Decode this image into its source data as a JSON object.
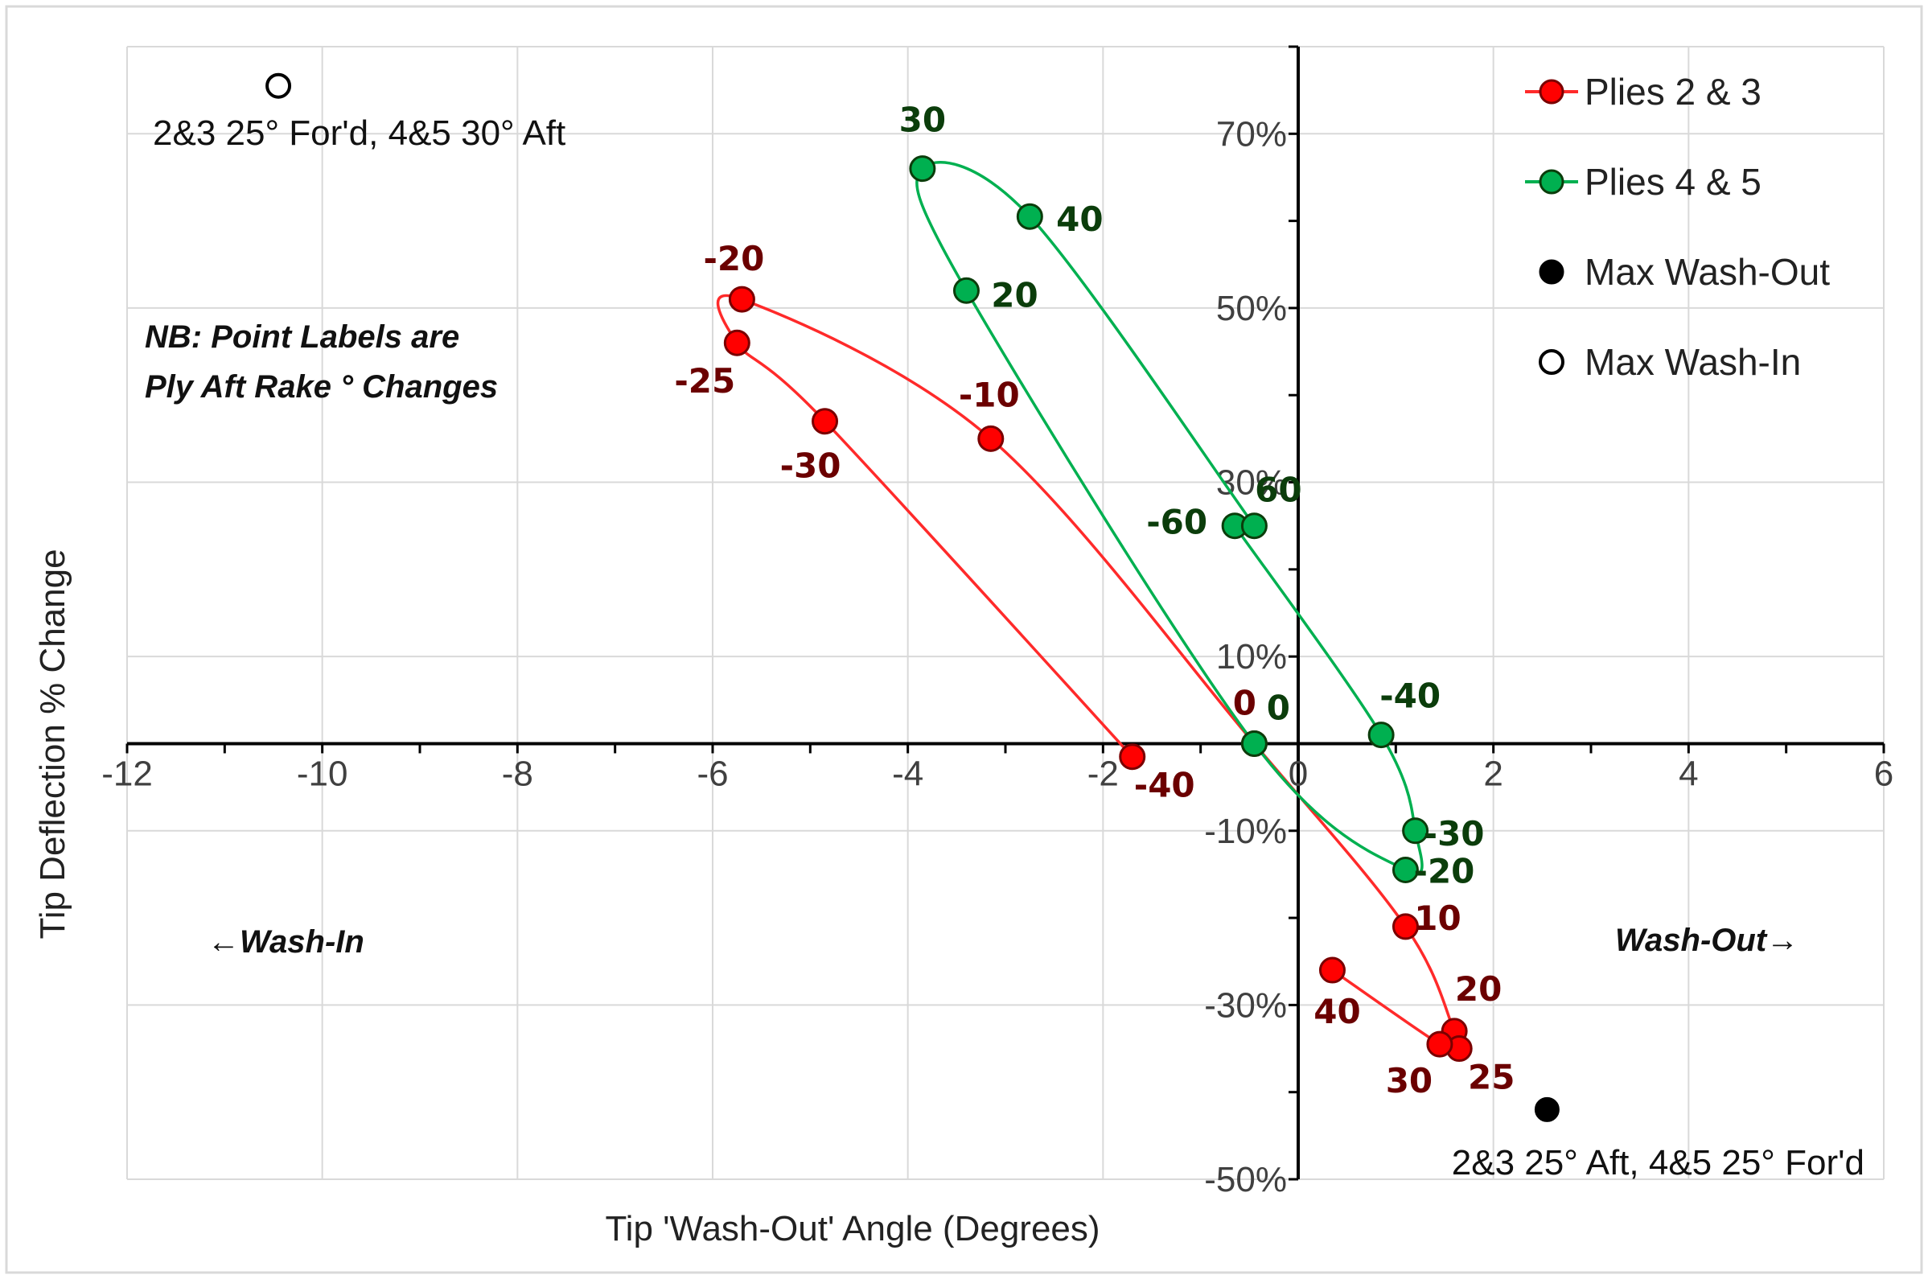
{
  "chart_data": {
    "type": "scatter",
    "title": "",
    "xlabel": "Tip 'Wash-Out' Angle (Degrees)",
    "ylabel": "Tip Deflection % Change",
    "xlim": [
      -12,
      6
    ],
    "ylim": [
      -50,
      80
    ],
    "x_ticks": [
      -12,
      -10,
      -8,
      -6,
      -4,
      -2,
      0,
      2,
      4,
      6
    ],
    "x_tick_labels": [
      "-12",
      "-10",
      "-8",
      "-6",
      "-4",
      "-2",
      "0",
      "2",
      "4",
      "6"
    ],
    "y_ticks": [
      70,
      50,
      30,
      10,
      -10,
      -30,
      -50
    ],
    "y_tick_labels": [
      "70%",
      "50%",
      "30%",
      "10%",
      "-10%",
      "-30%",
      "-50%"
    ],
    "grid": true,
    "legend_position": "top-right",
    "series": [
      {
        "name": "Plies 2 & 3",
        "color": "#ff0000",
        "line_color": "#ff2a2a",
        "label_color": "#6b0000",
        "points": [
          {
            "label": "-40",
            "x": -1.7,
            "y": -1.5
          },
          {
            "label": "-30",
            "x": -4.85,
            "y": 37
          },
          {
            "label": "-25",
            "x": -5.75,
            "y": 46
          },
          {
            "label": "-20",
            "x": -5.7,
            "y": 51
          },
          {
            "label": "-10",
            "x": -3.15,
            "y": 35
          },
          {
            "label": "0",
            "x": -0.45,
            "y": 0
          },
          {
            "label": "10",
            "x": 1.1,
            "y": -21
          },
          {
            "label": "20",
            "x": 1.6,
            "y": -33
          },
          {
            "label": "25",
            "x": 1.65,
            "y": -35
          },
          {
            "label": "30",
            "x": 1.45,
            "y": -34.5
          },
          {
            "label": "40",
            "x": 0.35,
            "y": -26
          }
        ]
      },
      {
        "name": "Plies 4 & 5",
        "color": "#00b050",
        "line_color": "#00b050",
        "label_color": "#0b3d0b",
        "points": [
          {
            "label": "-60",
            "x": -0.65,
            "y": 25
          },
          {
            "label": "-40",
            "x": 0.85,
            "y": 1
          },
          {
            "label": "-30",
            "x": 1.2,
            "y": -10
          },
          {
            "label": "-20",
            "x": 1.1,
            "y": -14.5
          },
          {
            "label": "0",
            "x": -0.45,
            "y": 0
          },
          {
            "label": "20",
            "x": -3.4,
            "y": 52
          },
          {
            "label": "30",
            "x": -3.85,
            "y": 66
          },
          {
            "label": "40",
            "x": -2.75,
            "y": 60.5
          },
          {
            "label": "60",
            "x": -0.45,
            "y": 25
          }
        ]
      },
      {
        "name": "Max Wash-Out",
        "color": "#000000",
        "points": [
          {
            "x": 2.55,
            "y": -42
          }
        ]
      },
      {
        "name": "Max Wash-In",
        "color": "#ffffff",
        "points": [
          {
            "x": -10.45,
            "y": 75.5
          }
        ]
      }
    ],
    "annotations": {
      "wash_in_config": "2&3 25° For'd, 4&5 30° Aft",
      "wash_out_config": "2&3 25° Aft, 4&5 25° For'd",
      "note_line1": "NB: Point Labels are",
      "note_line2": "Ply Aft Rake ° Changes",
      "wash_in_arrow": "←Wash-In",
      "wash_out_arrow": "Wash-Out→"
    }
  }
}
